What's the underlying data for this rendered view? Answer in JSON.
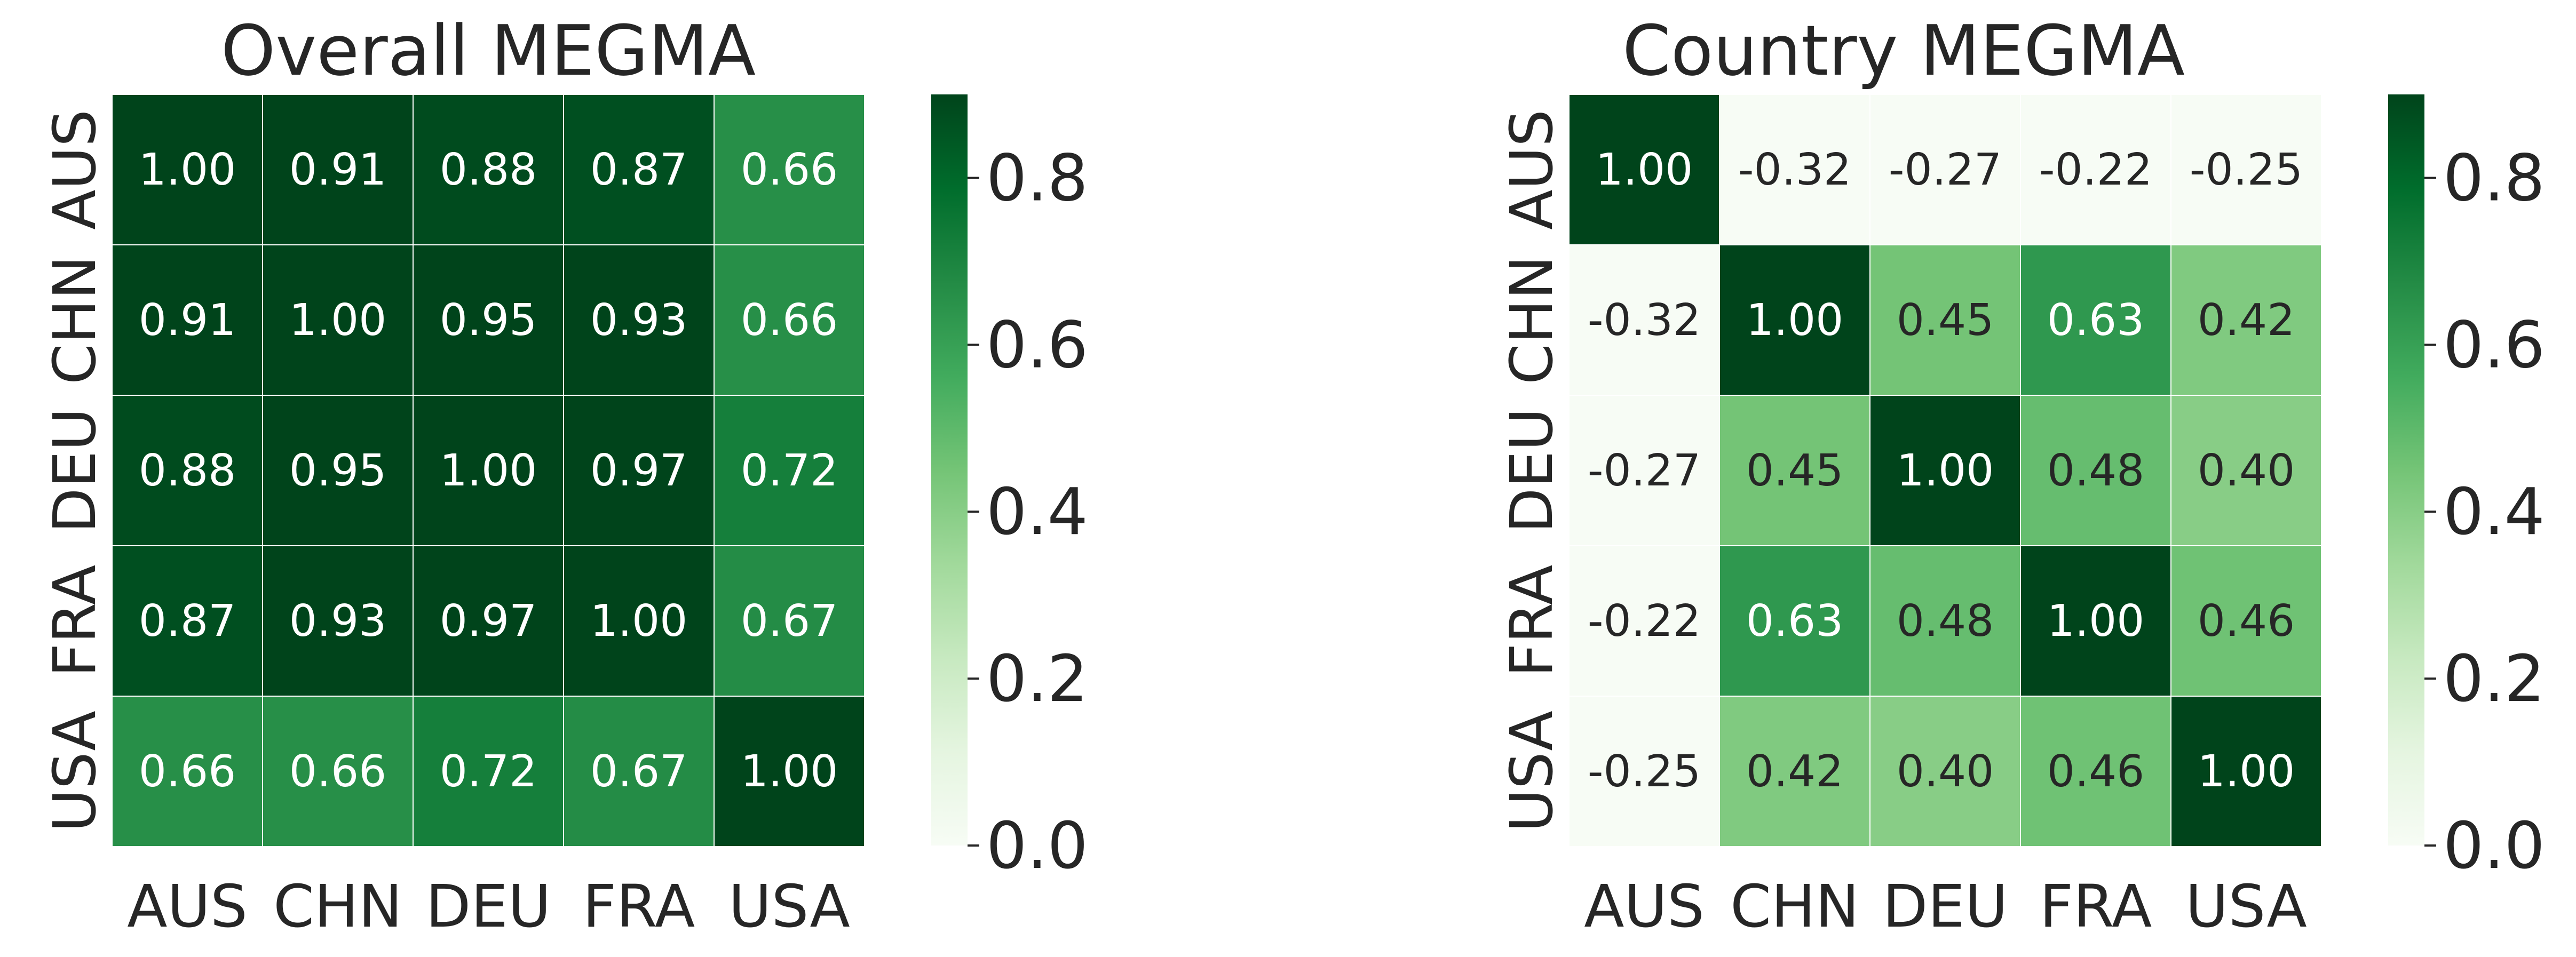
{
  "chart_data": [
    {
      "type": "heatmap",
      "title": "Overall MEGMA",
      "x_labels": [
        "AUS",
        "CHN",
        "DEU",
        "FRA",
        "USA"
      ],
      "y_labels": [
        "AUS",
        "CHN",
        "DEU",
        "FRA",
        "USA"
      ],
      "values": [
        [
          1.0,
          0.91,
          0.88,
          0.87,
          0.66
        ],
        [
          0.91,
          1.0,
          0.95,
          0.93,
          0.66
        ],
        [
          0.88,
          0.95,
          1.0,
          0.97,
          0.72
        ],
        [
          0.87,
          0.93,
          0.97,
          1.0,
          0.67
        ],
        [
          0.66,
          0.66,
          0.72,
          0.67,
          1.0
        ]
      ],
      "colorbar": {
        "ticks": [
          "0.0",
          "0.2",
          "0.4",
          "0.6",
          "0.8"
        ],
        "range": [
          0,
          0.9
        ],
        "colormap": "Greens"
      }
    },
    {
      "type": "heatmap",
      "title": "Country MEGMA",
      "x_labels": [
        "AUS",
        "CHN",
        "DEU",
        "FRA",
        "USA"
      ],
      "y_labels": [
        "AUS",
        "CHN",
        "DEU",
        "FRA",
        "USA"
      ],
      "values": [
        [
          1.0,
          -0.32,
          -0.27,
          -0.22,
          -0.25
        ],
        [
          -0.32,
          1.0,
          0.45,
          0.63,
          0.42
        ],
        [
          -0.27,
          0.45,
          1.0,
          0.48,
          0.4
        ],
        [
          -0.22,
          0.63,
          0.48,
          1.0,
          0.46
        ],
        [
          -0.25,
          0.42,
          0.4,
          0.46,
          1.0
        ]
      ],
      "colorbar": {
        "ticks": [
          "0.0",
          "0.2",
          "0.4",
          "0.6",
          "0.8"
        ],
        "range": [
          0,
          0.9
        ],
        "colormap": "Greens"
      }
    }
  ]
}
